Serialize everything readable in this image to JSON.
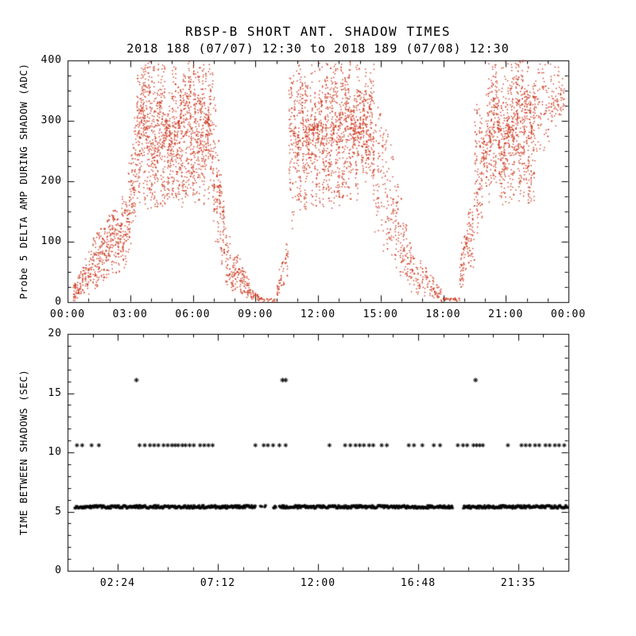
{
  "title": {
    "line1": "RBSP-B SHORT ANT. SHADOW TIMES",
    "line2": "2018 188 (07/07) 12:30 to 2018 189 (07/08) 12:30"
  },
  "colors": {
    "marker_red": "#cc3319",
    "marker_black": "#000000",
    "axis": "#000000"
  },
  "chart_data": [
    {
      "type": "scatter",
      "panel": "top",
      "title": "RBSP-B SHORT ANT. SHADOW TIMES",
      "subtitle": "2018 188 (07/07) 12:30 to 2018 189 (07/08) 12:30",
      "xlabel": "",
      "ylabel": "Probe 5 DELTA AMP DURING SHADOW (ADC)",
      "x_range_hours": [
        0,
        24
      ],
      "ylim": [
        0,
        400
      ],
      "marker": "dot",
      "color": "#cc3319",
      "grid": false,
      "x_major_ticks": [
        {
          "t": 0,
          "label": "00:00"
        },
        {
          "t": 3,
          "label": "03:00"
        },
        {
          "t": 6,
          "label": "06:00"
        },
        {
          "t": 9,
          "label": "09:00"
        },
        {
          "t": 12,
          "label": "12:00"
        },
        {
          "t": 15,
          "label": "15:00"
        },
        {
          "t": 18,
          "label": "18:00"
        },
        {
          "t": 21,
          "label": "21:00"
        },
        {
          "t": 24,
          "label": "00:00"
        }
      ],
      "y_major_ticks": [
        0,
        100,
        200,
        300,
        400
      ],
      "x_minor_step": 1,
      "y_minor_step": 25,
      "envelope_segments": [
        {
          "t0": 0.25,
          "t1": 1.3,
          "cols": 22,
          "pts": 7,
          "lo0": 0,
          "lo1": 15,
          "hi0": 25,
          "hi1": 110
        },
        {
          "t0": 1.3,
          "t1": 2.9,
          "cols": 40,
          "pts": 9,
          "lo0": 20,
          "lo1": 60,
          "hi0": 110,
          "hi1": 190
        },
        {
          "t0": 2.9,
          "t1": 3.35,
          "cols": 12,
          "pts": 10,
          "lo0": 70,
          "lo1": 120,
          "hi0": 220,
          "hi1": 400
        },
        {
          "t0": 3.35,
          "t1": 3.6,
          "cols": 7,
          "pts": 16,
          "lo0": 150,
          "lo1": 170,
          "hi0": 400,
          "hi1": 400
        },
        {
          "t0": 3.6,
          "t1": 6.9,
          "cols": 85,
          "pts": 16,
          "lo0": 150,
          "lo1": 160,
          "hi0": 400,
          "hi1": 400
        },
        {
          "t0": 6.9,
          "t1": 7.5,
          "cols": 14,
          "pts": 12,
          "lo0": 90,
          "lo1": 50,
          "hi0": 400,
          "hi1": 170
        },
        {
          "t0": 7.5,
          "t1": 8.7,
          "cols": 26,
          "pts": 7,
          "lo0": 25,
          "lo1": 5,
          "hi0": 140,
          "hi1": 40
        },
        {
          "t0": 8.7,
          "t1": 9.3,
          "cols": 12,
          "pts": 4,
          "lo0": 0,
          "lo1": 0,
          "hi0": 25,
          "hi1": 10
        },
        {
          "t0": 9.3,
          "t1": 10.0,
          "cols": 10,
          "pts": 2,
          "lo0": 0,
          "lo1": 0,
          "hi0": 6,
          "hi1": 6
        },
        {
          "t0": 10.0,
          "t1": 10.6,
          "cols": 12,
          "pts": 5,
          "lo0": 0,
          "lo1": 30,
          "hi0": 35,
          "hi1": 130
        },
        {
          "t0": 10.6,
          "t1": 11.0,
          "cols": 8,
          "pts": 15,
          "lo0": 80,
          "lo1": 150,
          "hi0": 390,
          "hi1": 400
        },
        {
          "t0": 11.0,
          "t1": 14.7,
          "cols": 90,
          "pts": 16,
          "lo0": 150,
          "lo1": 160,
          "hi0": 400,
          "hi1": 400
        },
        {
          "t0": 14.7,
          "t1": 16.5,
          "cols": 34,
          "pts": 8,
          "lo0": 100,
          "lo1": 12,
          "hi0": 400,
          "hi1": 90
        },
        {
          "t0": 16.5,
          "t1": 17.9,
          "cols": 24,
          "pts": 5,
          "lo0": 10,
          "lo1": 2,
          "hi0": 90,
          "hi1": 25
        },
        {
          "t0": 17.9,
          "t1": 18.8,
          "cols": 12,
          "pts": 3,
          "lo0": 0,
          "lo1": 0,
          "hi0": 10,
          "hi1": 8
        },
        {
          "t0": 18.8,
          "t1": 19.5,
          "cols": 16,
          "pts": 8,
          "lo0": 15,
          "lo1": 60,
          "hi0": 90,
          "hi1": 200
        },
        {
          "t0": 19.5,
          "t1": 20.2,
          "cols": 14,
          "pts": 13,
          "lo0": 80,
          "lo1": 160,
          "hi0": 320,
          "hi1": 400
        },
        {
          "t0": 20.2,
          "t1": 22.4,
          "cols": 55,
          "pts": 16,
          "lo0": 160,
          "lo1": 160,
          "hi0": 400,
          "hi1": 400
        },
        {
          "t0": 22.4,
          "t1": 23.8,
          "cols": 26,
          "pts": 6,
          "lo0": 230,
          "lo1": 290,
          "hi0": 400,
          "hi1": 400
        }
      ]
    },
    {
      "type": "scatter",
      "panel": "bottom",
      "xlabel": "",
      "ylabel": "TIME BETWEEN SHADOWS (SEC)",
      "x_range_hours": [
        0,
        24
      ],
      "ylim": [
        0,
        20
      ],
      "marker": "asterisk",
      "color": "#000000",
      "grid": false,
      "x_major_ticks": [
        {
          "t": 2.4,
          "label": "02:24"
        },
        {
          "t": 7.2,
          "label": "07:12"
        },
        {
          "t": 12.0,
          "label": "12:00"
        },
        {
          "t": 16.8,
          "label": "16:48"
        },
        {
          "t": 21.6,
          "label": "21:35"
        }
      ],
      "y_major_ticks": [
        0,
        5,
        10,
        15,
        20
      ],
      "x_minor_step": 1.2,
      "y_minor_step": 1,
      "dense_band": {
        "y": 5.4,
        "t0": 0.35,
        "t1": 23.97,
        "step": 0.035,
        "jitter_y": 0.12,
        "gaps": [
          [
            9.55,
            9.75
          ],
          [
            18.45,
            18.95
          ]
        ],
        "sparse": [
          [
            9.0,
            10.2
          ]
        ]
      },
      "mid_row": {
        "y": 10.6,
        "t": [
          0.45,
          0.7,
          1.15,
          1.5,
          3.45,
          3.7,
          3.95,
          4.15,
          4.35,
          4.6,
          4.8,
          5.0,
          5.15,
          5.3,
          5.5,
          5.65,
          5.85,
          6.05,
          6.35,
          6.55,
          6.75,
          6.95,
          9.0,
          9.4,
          9.6,
          9.85,
          10.15,
          10.45,
          12.55,
          13.3,
          13.55,
          13.8,
          14.0,
          14.2,
          14.45,
          14.65,
          15.05,
          15.3,
          16.35,
          16.6,
          17.0,
          17.55,
          17.85,
          18.7,
          18.95,
          19.15,
          19.45,
          19.6,
          19.75,
          19.9,
          21.1,
          21.75,
          21.95,
          22.15,
          22.4,
          22.6,
          22.9,
          23.1,
          23.35,
          23.55,
          23.8
        ]
      },
      "outliers": [
        {
          "t": 3.3,
          "y": 16.1
        },
        {
          "t": 10.3,
          "y": 16.1
        },
        {
          "t": 10.45,
          "y": 16.1
        },
        {
          "t": 19.55,
          "y": 16.1
        }
      ]
    }
  ]
}
